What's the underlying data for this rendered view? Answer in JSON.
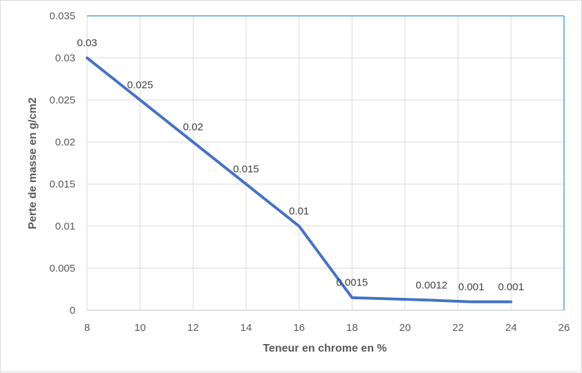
{
  "chart_data": {
    "type": "line",
    "title": "",
    "xlabel": "Teneur en chrome en %",
    "ylabel": "Perte de masse en g/cm2",
    "xlim": [
      8,
      26
    ],
    "ylim": [
      0,
      0.035
    ],
    "x_ticks": [
      "8",
      "10",
      "12",
      "14",
      "16",
      "18",
      "20",
      "22",
      "24",
      "26"
    ],
    "y_ticks": [
      "0",
      "0.005",
      "0.01",
      "0.015",
      "0.02",
      "0.025",
      "0.03",
      "0.035"
    ],
    "grid": true,
    "legend": "none",
    "series": [
      {
        "color": "#4472c4",
        "points": [
          {
            "x": 8,
            "y": 0.03,
            "label": "0.03"
          },
          {
            "x": 10,
            "y": 0.025,
            "label": "0.025"
          },
          {
            "x": 12,
            "y": 0.02,
            "label": "0.02"
          },
          {
            "x": 14,
            "y": 0.015,
            "label": "0.015"
          },
          {
            "x": 16,
            "y": 0.01,
            "label": "0.01"
          },
          {
            "x": 18,
            "y": 0.0015,
            "label": "0.0015"
          },
          {
            "x": 21,
            "y": 0.0012,
            "label": "0.0012"
          },
          {
            "x": 22.5,
            "y": 0.001,
            "label": "0.001"
          },
          {
            "x": 24,
            "y": 0.001,
            "label": "0.001"
          }
        ]
      }
    ]
  }
}
